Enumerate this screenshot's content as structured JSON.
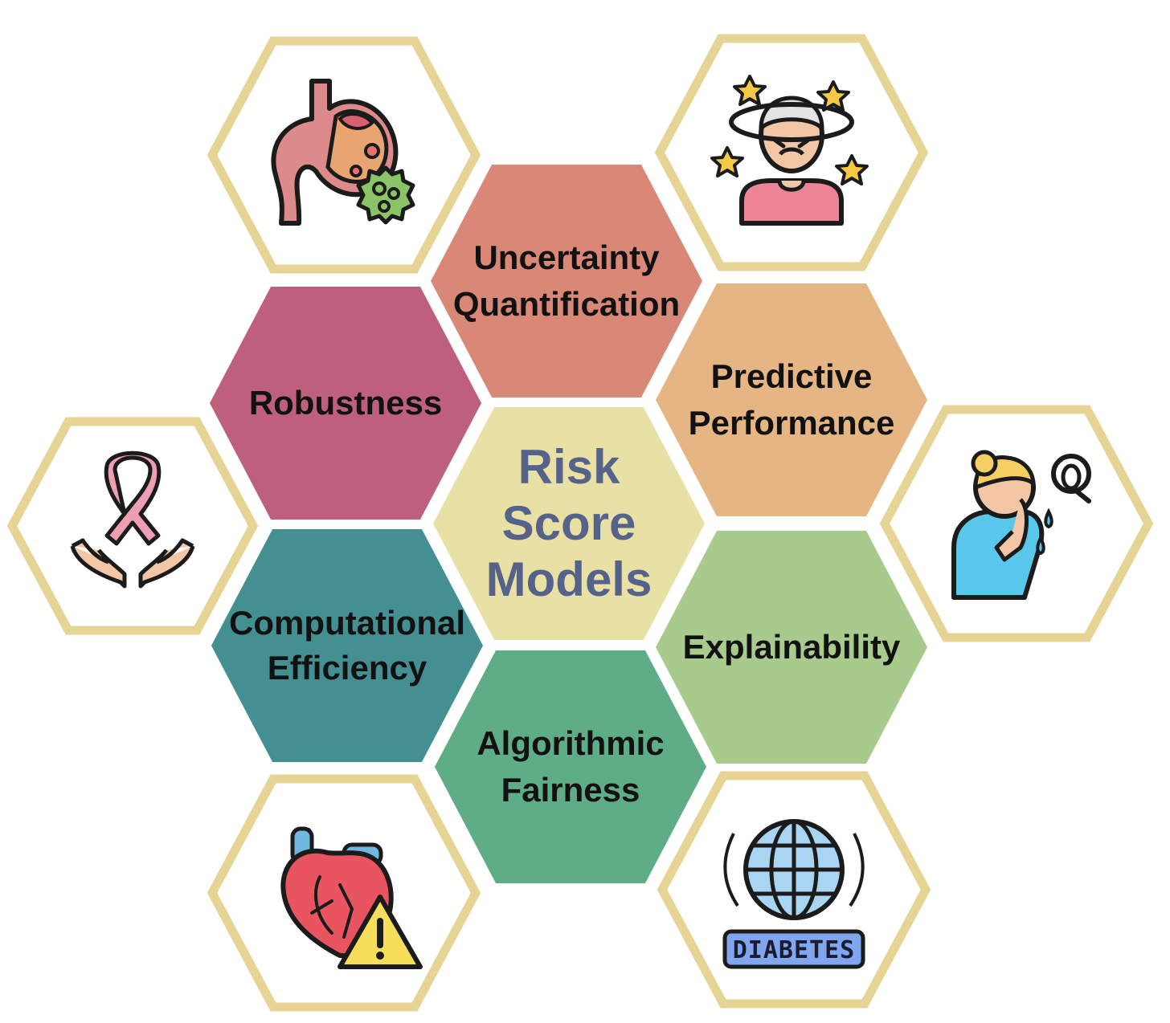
{
  "center": {
    "lines": [
      "Risk",
      "Score",
      "Models"
    ],
    "color": "#e8e0a4",
    "text_color": "#55628a"
  },
  "properties": [
    {
      "id": "uncertainty",
      "lines": [
        "Uncertainty",
        "Quantification"
      ],
      "color": "#d98878"
    },
    {
      "id": "robustness",
      "lines": [
        "Robustness"
      ],
      "color": "#be5f7c"
    },
    {
      "id": "predictive",
      "lines": [
        "Predictive",
        "Performance"
      ],
      "color": "#e5b584"
    },
    {
      "id": "computational",
      "lines": [
        "Computational",
        "Efficiency"
      ],
      "color": "#438f91"
    },
    {
      "id": "explainability",
      "lines": [
        "Explainability"
      ],
      "color": "#a8ca8c"
    },
    {
      "id": "fairness",
      "lines": [
        "Algorithmic",
        "Fairness"
      ],
      "color": "#5fad87"
    }
  ],
  "icons": [
    {
      "id": "stomach",
      "name": "stomach-virus-icon"
    },
    {
      "id": "dizzy",
      "name": "dizzy-person-icon"
    },
    {
      "id": "ribbon",
      "name": "cancer-ribbon-hands-icon"
    },
    {
      "id": "sad",
      "name": "crying-person-icon"
    },
    {
      "id": "heart",
      "name": "heart-warning-icon"
    },
    {
      "id": "diabetes",
      "name": "diabetes-globe-icon",
      "badge": "DIABETES"
    }
  ],
  "colors": {
    "outline_hex": "#e6d495"
  }
}
